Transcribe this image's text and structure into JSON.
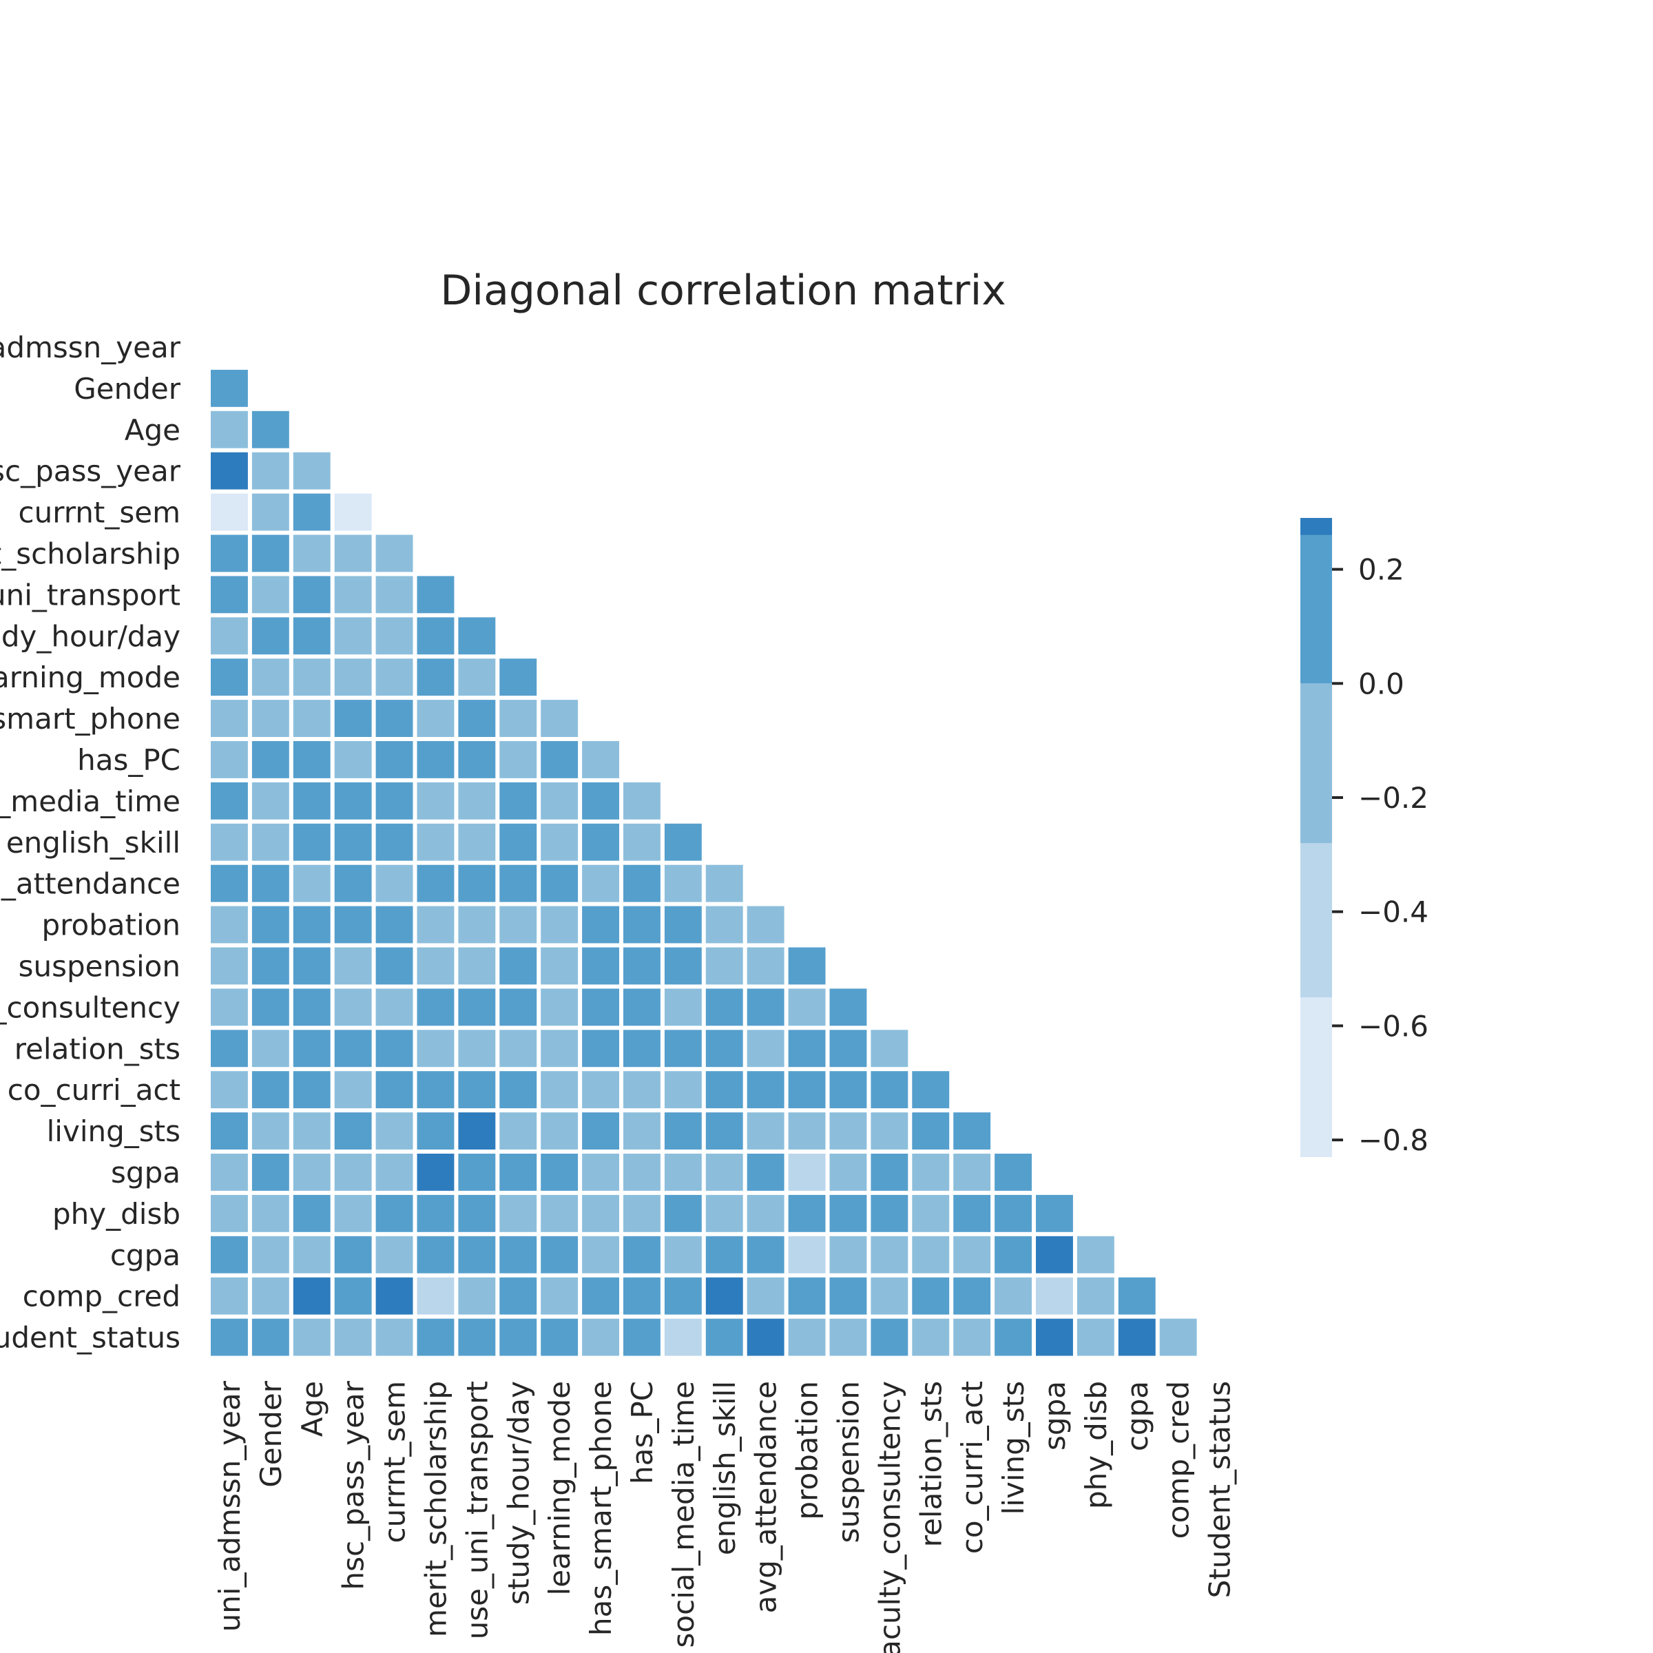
{
  "chart_data": {
    "type": "heatmap",
    "title": "Diagonal correlation matrix",
    "xlabel": "",
    "ylabel": "",
    "mask": "upper-triangle",
    "labels": [
      "uni_admssn_year",
      "Gender",
      "Age",
      "hsc_pass_year",
      "currnt_sem",
      "merit_scholarship",
      "use_uni_transport",
      "study_hour/day",
      "learning_mode",
      "has_smart_phone",
      "has_PC",
      "social_media_time",
      "english_skill",
      "avg_attendance",
      "probation",
      "suspension",
      "faculty_consultency",
      "relation_sts",
      "co_curri_act",
      "living_sts",
      "sgpa",
      "phy_disb",
      "cgpa",
      "comp_cred",
      "Student_status"
    ],
    "values": [
      [
        1
      ],
      [
        0.05,
        1
      ],
      [
        -0.15,
        0.05,
        1
      ],
      [
        0.3,
        -0.15,
        -0.15,
        1
      ],
      [
        -0.7,
        -0.15,
        0.05,
        -0.7,
        1
      ],
      [
        0.05,
        0.05,
        -0.15,
        -0.15,
        -0.15,
        1
      ],
      [
        0.05,
        -0.15,
        0.05,
        -0.15,
        -0.15,
        0.05,
        1
      ],
      [
        -0.15,
        0.05,
        0.05,
        -0.15,
        -0.15,
        0.05,
        0.05,
        1
      ],
      [
        0.05,
        -0.15,
        -0.15,
        -0.15,
        -0.15,
        0.05,
        -0.15,
        0.05,
        1
      ],
      [
        -0.15,
        -0.15,
        -0.15,
        0.05,
        0.05,
        -0.15,
        0.05,
        -0.15,
        -0.15,
        1
      ],
      [
        -0.15,
        0.05,
        0.05,
        -0.15,
        0.05,
        0.05,
        0.05,
        -0.15,
        0.05,
        -0.15,
        1
      ],
      [
        0.05,
        -0.15,
        0.05,
        0.05,
        0.05,
        -0.15,
        -0.15,
        0.05,
        -0.15,
        0.05,
        -0.15,
        1
      ],
      [
        -0.15,
        -0.15,
        0.05,
        0.05,
        0.05,
        -0.15,
        -0.15,
        0.05,
        -0.15,
        0.05,
        -0.15,
        0.05,
        1
      ],
      [
        0.05,
        0.05,
        -0.15,
        0.05,
        -0.15,
        0.05,
        0.05,
        0.05,
        0.05,
        -0.15,
        0.05,
        -0.15,
        -0.15,
        1
      ],
      [
        -0.15,
        0.05,
        0.05,
        0.05,
        0.05,
        -0.15,
        -0.15,
        -0.15,
        -0.15,
        0.05,
        0.05,
        0.05,
        -0.15,
        -0.15,
        1
      ],
      [
        -0.15,
        0.05,
        0.05,
        -0.15,
        0.05,
        -0.15,
        -0.15,
        0.05,
        -0.15,
        0.05,
        0.05,
        0.05,
        -0.15,
        -0.15,
        0.05,
        1
      ],
      [
        -0.15,
        0.05,
        0.05,
        -0.15,
        -0.15,
        0.05,
        0.05,
        0.05,
        -0.15,
        0.05,
        0.05,
        -0.15,
        0.05,
        0.05,
        -0.15,
        0.05,
        1
      ],
      [
        0.05,
        -0.15,
        0.05,
        0.05,
        0.05,
        -0.15,
        -0.15,
        -0.15,
        -0.15,
        0.05,
        0.05,
        0.05,
        0.05,
        -0.15,
        0.05,
        0.05,
        -0.15,
        1
      ],
      [
        -0.15,
        0.05,
        0.05,
        -0.15,
        0.05,
        0.05,
        0.05,
        0.05,
        -0.15,
        -0.15,
        -0.15,
        -0.15,
        0.05,
        0.05,
        0.05,
        0.05,
        0.05,
        0.05,
        1
      ],
      [
        0.05,
        -0.15,
        -0.15,
        0.05,
        -0.15,
        0.05,
        0.3,
        -0.15,
        -0.15,
        0.05,
        -0.15,
        0.05,
        0.05,
        -0.15,
        -0.15,
        -0.15,
        -0.15,
        0.05,
        0.05,
        1
      ],
      [
        -0.15,
        0.05,
        -0.15,
        -0.15,
        -0.15,
        0.3,
        0.05,
        0.05,
        0.05,
        -0.15,
        -0.15,
        -0.15,
        -0.15,
        0.05,
        -0.45,
        -0.15,
        0.05,
        -0.15,
        -0.15,
        0.05,
        1
      ],
      [
        -0.15,
        -0.15,
        0.05,
        -0.15,
        0.05,
        0.05,
        0.05,
        -0.15,
        -0.15,
        -0.15,
        -0.15,
        0.05,
        -0.15,
        -0.15,
        0.05,
        0.05,
        0.05,
        -0.15,
        0.05,
        0.05,
        0.05,
        1
      ],
      [
        0.05,
        -0.15,
        -0.15,
        0.05,
        -0.15,
        0.05,
        0.05,
        0.05,
        0.05,
        -0.15,
        0.05,
        -0.15,
        0.05,
        0.05,
        -0.45,
        -0.15,
        -0.15,
        -0.15,
        -0.15,
        0.05,
        0.3,
        -0.15,
        1
      ],
      [
        -0.15,
        -0.15,
        0.3,
        0.05,
        0.3,
        -0.45,
        -0.15,
        0.05,
        -0.15,
        0.05,
        0.05,
        0.05,
        0.3,
        -0.15,
        0.05,
        0.05,
        -0.15,
        0.05,
        0.05,
        -0.15,
        -0.45,
        -0.15,
        0.05,
        1
      ],
      [
        0.05,
        0.05,
        -0.15,
        -0.15,
        -0.15,
        0.05,
        0.05,
        0.05,
        0.05,
        -0.15,
        0.05,
        -0.45,
        0.05,
        0.3,
        -0.15,
        -0.15,
        0.05,
        -0.15,
        -0.15,
        0.05,
        0.3,
        -0.15,
        0.3,
        -0.15,
        1
      ]
    ],
    "colorbar": {
      "ticks": [
        0.2,
        0.0,
        -0.2,
        -0.4,
        -0.6,
        -0.8
      ],
      "tick_labels": [
        "0.2",
        "0.0",
        "−0.2",
        "−0.4",
        "−0.6",
        "−0.8"
      ],
      "range": [
        -0.83,
        0.29
      ],
      "bands": [
        {
          "from": -0.83,
          "to": -0.55,
          "color": "#dbe8f6"
        },
        {
          "from": -0.55,
          "to": -0.28,
          "color": "#bad6eb"
        },
        {
          "from": -0.28,
          "to": 0.0,
          "color": "#8cbedc"
        },
        {
          "from": 0.0,
          "to": 0.26,
          "color": "#559fcd"
        },
        {
          "from": 0.26,
          "to": 0.29,
          "color": "#2d7cbe"
        }
      ]
    }
  }
}
